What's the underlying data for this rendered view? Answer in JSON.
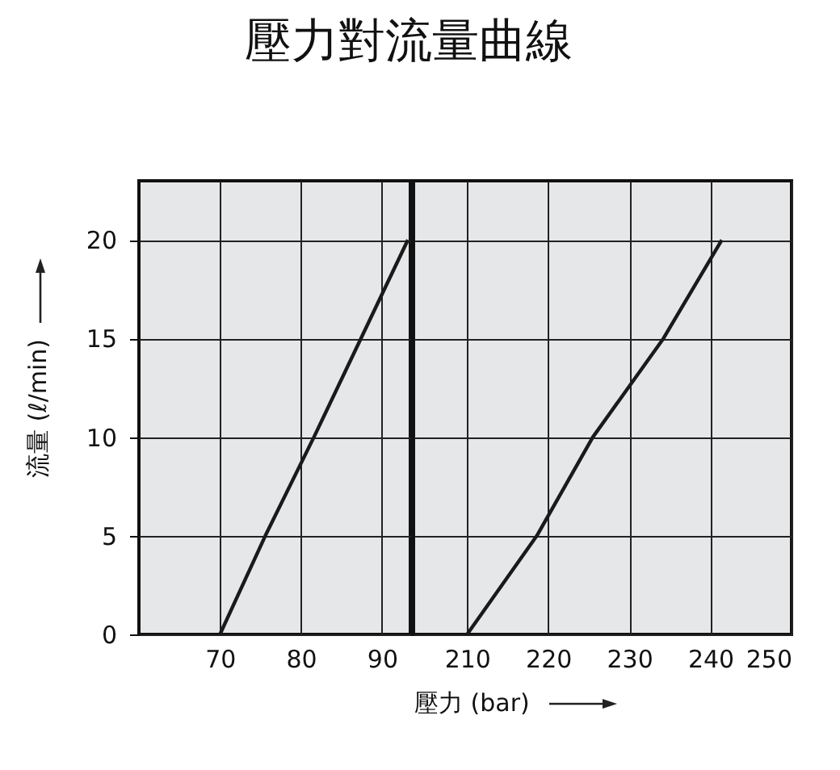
{
  "chart_data": [
    {
      "type": "line",
      "title": "壓力對流量曲線",
      "ylabel": "流量 (ℓ/min)",
      "xlim": [
        60,
        93.5
      ],
      "xticks": [
        70,
        80,
        90
      ],
      "ylim": [
        0,
        23
      ],
      "yticks": [
        0,
        5,
        10,
        15,
        20
      ],
      "grid": true,
      "series": [
        {
          "color": "#1a1a1a",
          "x": [
            70,
            75.6,
            81.6,
            87.4,
            93.2
          ],
          "values": [
            0,
            5,
            10,
            15,
            20
          ]
        }
      ]
    },
    {
      "type": "line",
      "xlabel": "壓力 (bar)",
      "xlim": [
        203.4,
        250
      ],
      "xticks": [
        210,
        220,
        230,
        240,
        250
      ],
      "ylim": [
        0,
        23
      ],
      "yticks": [
        0,
        5,
        10,
        15,
        20
      ],
      "grid": true,
      "tick_labels": "x",
      "series": [
        {
          "color": "#1a1a1a",
          "x": [
            210,
            218.6,
            225.5,
            234.2,
            241.4
          ],
          "values": [
            0,
            5,
            10,
            15,
            20
          ]
        }
      ]
    }
  ]
}
